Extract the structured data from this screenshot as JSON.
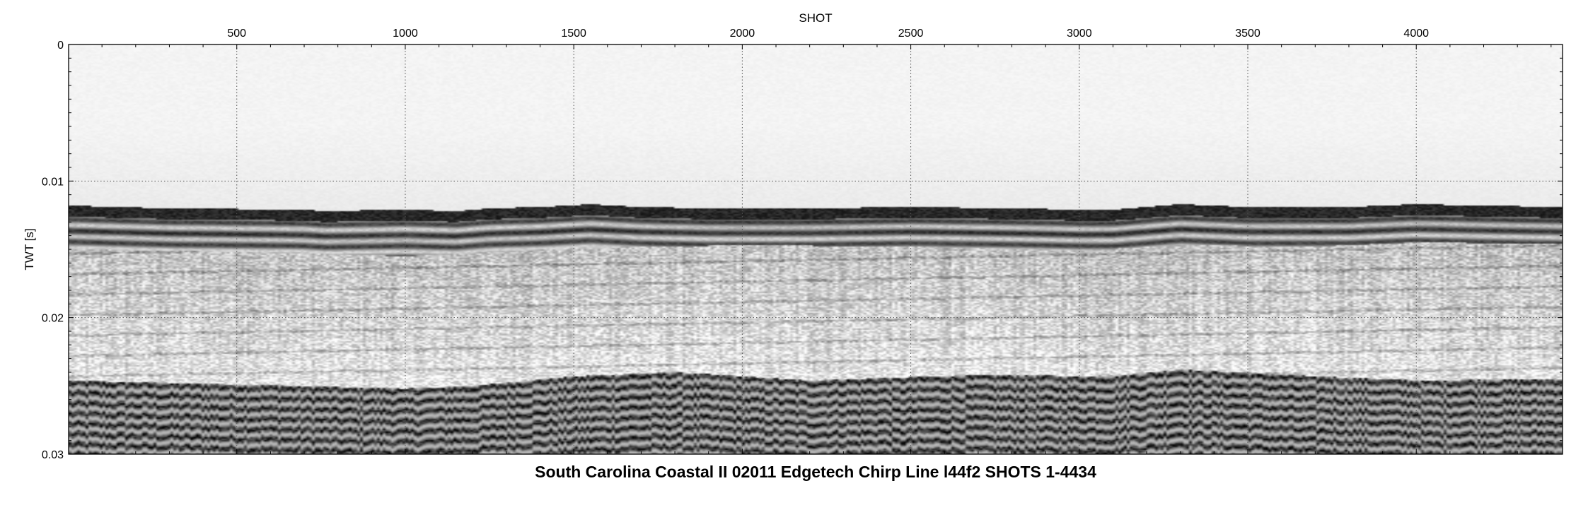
{
  "chart_data": {
    "type": "heatmap",
    "title": "South Carolina Coastal II 02011 Edgetech Chirp Line l44f2 SHOTS 1-4434",
    "xlabel": "SHOT",
    "ylabel": "TWT [s]",
    "x_axis_position": "top",
    "xlim": [
      1,
      4434
    ],
    "ylim": [
      0,
      0.03
    ],
    "y_inverted": true,
    "grid": true,
    "grid_style": "dotted",
    "colormap": "grayscale",
    "x_ticks": [
      {
        "value": 500,
        "label": "500"
      },
      {
        "value": 1000,
        "label": "1000"
      },
      {
        "value": 1500,
        "label": "1500"
      },
      {
        "value": 2000,
        "label": "2000"
      },
      {
        "value": 2500,
        "label": "2500"
      },
      {
        "value": 3000,
        "label": "3000"
      },
      {
        "value": 3500,
        "label": "3500"
      },
      {
        "value": 4000,
        "label": "4000"
      }
    ],
    "y_ticks": [
      {
        "value": 0,
        "label": "0"
      },
      {
        "value": 0.01,
        "label": "0.01"
      },
      {
        "value": 0.02,
        "label": "0.02"
      },
      {
        "value": 0.03,
        "label": "0.03"
      }
    ],
    "reflectors": [
      {
        "name": "seafloor",
        "points": [
          [
            1,
            0.0122
          ],
          [
            300,
            0.0124
          ],
          [
            700,
            0.0125
          ],
          [
            760,
            0.0126
          ],
          [
            1000,
            0.0125
          ],
          [
            1150,
            0.0126
          ],
          [
            1250,
            0.0124
          ],
          [
            1400,
            0.0123
          ],
          [
            1550,
            0.0121
          ],
          [
            1700,
            0.0123
          ],
          [
            1900,
            0.0124
          ],
          [
            2200,
            0.0124
          ],
          [
            2500,
            0.0123
          ],
          [
            2800,
            0.0124
          ],
          [
            3000,
            0.0125
          ],
          [
            3100,
            0.0125
          ],
          [
            3300,
            0.0121
          ],
          [
            3500,
            0.0123
          ],
          [
            3800,
            0.0123
          ],
          [
            4000,
            0.0121
          ],
          [
            4200,
            0.0122
          ],
          [
            4434,
            0.0123
          ]
        ]
      },
      {
        "name": "seafloor-multiple-band",
        "points": [
          [
            1,
            0.0138
          ],
          [
            500,
            0.014
          ],
          [
            1000,
            0.0143
          ],
          [
            1300,
            0.014
          ],
          [
            1500,
            0.0137
          ],
          [
            1750,
            0.0136
          ],
          [
            2000,
            0.0135
          ],
          [
            2500,
            0.0136
          ],
          [
            3000,
            0.0139
          ],
          [
            3300,
            0.0135
          ],
          [
            3700,
            0.0136
          ],
          [
            4000,
            0.0133
          ],
          [
            4434,
            0.0134
          ]
        ]
      },
      {
        "name": "lower-reflector",
        "points": [
          [
            1,
            0.0252
          ],
          [
            500,
            0.0255
          ],
          [
            1000,
            0.0258
          ],
          [
            1200,
            0.0256
          ],
          [
            1500,
            0.0249
          ],
          [
            1800,
            0.0246
          ],
          [
            2200,
            0.0252
          ],
          [
            2700,
            0.0248
          ],
          [
            3100,
            0.0249
          ],
          [
            3300,
            0.0244
          ],
          [
            3700,
            0.0249
          ],
          [
            4000,
            0.0252
          ],
          [
            4434,
            0.0251
          ]
        ]
      }
    ]
  }
}
